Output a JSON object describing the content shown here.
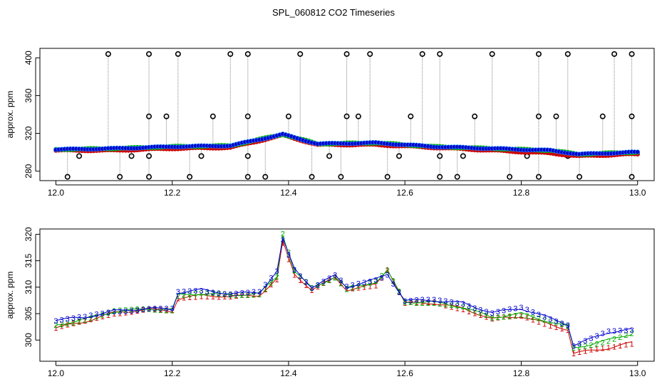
{
  "title": "SPL_060812  CO2 Timeseries",
  "chart_data": [
    {
      "type": "scatter",
      "ylabel": "approx. ppm",
      "xlim": [
        12.0,
        13.0
      ],
      "ylim": [
        270,
        410
      ],
      "xticks": [
        "12.0",
        "12.2",
        "12.4",
        "12.6",
        "12.8",
        "13.0"
      ],
      "yticks": [
        "280",
        "320",
        "360",
        "400"
      ],
      "series": [
        {
          "color": "#cc0000",
          "values": [
            [
              12.0,
              302
            ],
            [
              12.1,
              302
            ],
            [
              12.2,
              304
            ],
            [
              12.3,
              305
            ],
            [
              12.39,
              318
            ],
            [
              12.45,
              308
            ],
            [
              12.55,
              308
            ],
            [
              12.65,
              305
            ],
            [
              12.75,
              302
            ],
            [
              12.85,
              299
            ],
            [
              12.9,
              296
            ],
            [
              12.99,
              298
            ]
          ]
        },
        {
          "color": "#00aa00",
          "values": [
            [
              12.0,
              303
            ],
            [
              12.1,
              304
            ],
            [
              12.2,
              306
            ],
            [
              12.3,
              307
            ],
            [
              12.39,
              319
            ],
            [
              12.45,
              309
            ],
            [
              12.55,
              310
            ],
            [
              12.65,
              306
            ],
            [
              12.75,
              304
            ],
            [
              12.85,
              302
            ],
            [
              12.9,
              298
            ],
            [
              12.99,
              300
            ]
          ]
        },
        {
          "color": "#0000cc",
          "values": [
            [
              12.0,
              303
            ],
            [
              12.1,
              304
            ],
            [
              12.2,
              306
            ],
            [
              12.3,
              307
            ],
            [
              12.39,
              319
            ],
            [
              12.45,
              309
            ],
            [
              12.55,
              310
            ],
            [
              12.65,
              306
            ],
            [
              12.75,
              304
            ],
            [
              12.85,
              302
            ],
            [
              12.9,
              298
            ],
            [
              12.99,
              300
            ]
          ]
        }
      ],
      "outliers_high": [
        12.09,
        12.16,
        12.21,
        12.3,
        12.33,
        12.42,
        12.5,
        12.54,
        12.63,
        12.66,
        12.75,
        12.83,
        12.88,
        12.96,
        12.99
      ],
      "outliers_mid": [
        12.16,
        12.19,
        12.27,
        12.33,
        12.4,
        12.5,
        12.52,
        12.61,
        12.72,
        12.83,
        12.86,
        12.94,
        12.99
      ],
      "outliers_low": [
        12.02,
        12.11,
        12.16,
        12.23,
        12.33,
        12.36,
        12.44,
        12.49,
        12.57,
        12.66,
        12.69,
        12.78,
        12.83,
        12.9,
        12.99
      ],
      "outliers_lower": [
        12.04,
        12.13,
        12.16,
        12.25,
        12.33,
        12.47,
        12.59,
        12.66,
        12.7,
        12.81,
        12.88
      ],
      "outlier_values": {
        "high": 404,
        "mid": 338,
        "low": 274,
        "lower": 296
      }
    },
    {
      "type": "scatter",
      "ylabel": "approx. ppm",
      "xlim": [
        12.0,
        13.0
      ],
      "ylim": [
        296,
        321
      ],
      "xticks": [
        "12.0",
        "12.2",
        "12.4",
        "12.6",
        "12.8",
        "13.0"
      ],
      "yticks": [
        "300",
        "305",
        "310",
        "315",
        "320"
      ],
      "series": [
        {
          "name": "1",
          "color": "#cc0000",
          "values": [
            [
              12.0,
              302.3
            ],
            [
              12.05,
              303.5
            ],
            [
              12.1,
              305.2
            ],
            [
              12.16,
              305.8
            ],
            [
              12.2,
              305.5
            ],
            [
              12.21,
              307.8
            ],
            [
              12.25,
              308.5
            ],
            [
              12.3,
              308.2
            ],
            [
              12.35,
              308.5
            ],
            [
              12.38,
              311.5
            ],
            [
              12.39,
              318.5
            ],
            [
              12.41,
              312.5
            ],
            [
              12.44,
              309.5
            ],
            [
              12.48,
              311.8
            ],
            [
              12.5,
              309.5
            ],
            [
              12.55,
              310.5
            ],
            [
              12.57,
              313.5
            ],
            [
              12.6,
              307
            ],
            [
              12.65,
              307
            ],
            [
              12.7,
              306
            ],
            [
              12.75,
              304
            ],
            [
              12.8,
              304.5
            ],
            [
              12.88,
              302
            ],
            [
              12.89,
              297.5
            ],
            [
              12.95,
              298.5
            ],
            [
              12.99,
              299.5
            ]
          ]
        },
        {
          "name": "2",
          "color": "#00aa00",
          "values": [
            [
              12.0,
              302.8
            ],
            [
              12.05,
              304
            ],
            [
              12.1,
              305.4
            ],
            [
              12.16,
              305.9
            ],
            [
              12.2,
              305.8
            ],
            [
              12.21,
              308.5
            ],
            [
              12.25,
              308.8
            ],
            [
              12.3,
              308.5
            ],
            [
              12.35,
              308.8
            ],
            [
              12.38,
              312
            ],
            [
              12.39,
              320
            ],
            [
              12.41,
              313
            ],
            [
              12.44,
              309.8
            ],
            [
              12.48,
              312
            ],
            [
              12.5,
              309.8
            ],
            [
              12.55,
              311
            ],
            [
              12.57,
              313
            ],
            [
              12.6,
              307.2
            ],
            [
              12.65,
              307.2
            ],
            [
              12.7,
              306.2
            ],
            [
              12.75,
              304.3
            ],
            [
              12.8,
              305
            ],
            [
              12.88,
              302.5
            ],
            [
              12.89,
              298.5
            ],
            [
              12.95,
              300
            ],
            [
              12.99,
              301.2
            ]
          ]
        },
        {
          "name": "3",
          "color": "#0000cc",
          "values": [
            [
              12.0,
              303.8
            ],
            [
              12.05,
              304.3
            ],
            [
              12.1,
              305.5
            ],
            [
              12.16,
              306
            ],
            [
              12.2,
              305.8
            ],
            [
              12.21,
              309
            ],
            [
              12.25,
              309.5
            ],
            [
              12.3,
              308.8
            ],
            [
              12.35,
              309
            ],
            [
              12.38,
              313
            ],
            [
              12.39,
              319
            ],
            [
              12.41,
              313.5
            ],
            [
              12.44,
              310
            ],
            [
              12.48,
              312.2
            ],
            [
              12.5,
              310
            ],
            [
              12.55,
              311.5
            ],
            [
              12.57,
              312.5
            ],
            [
              12.6,
              307.5
            ],
            [
              12.65,
              307.5
            ],
            [
              12.7,
              307
            ],
            [
              12.75,
              305.2
            ],
            [
              12.8,
              306
            ],
            [
              12.88,
              303
            ],
            [
              12.89,
              299
            ],
            [
              12.95,
              301.5
            ],
            [
              12.99,
              302
            ]
          ]
        }
      ]
    }
  ]
}
